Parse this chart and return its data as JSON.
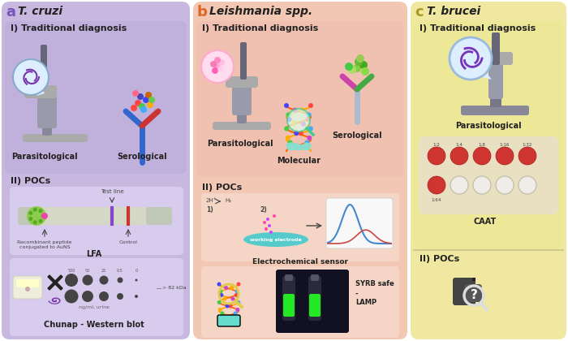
{
  "bg": "#ffffff",
  "panel_a": {
    "label": "a",
    "species": "T. cruzi",
    "label_color": "#7755bb",
    "bg": "#c8b8e0",
    "sec1_bg": "#c0b0dc",
    "sec2_bg": "#c8b8e0",
    "sub_bg": "#d8ccee"
  },
  "panel_b": {
    "label": "b",
    "species": "Leishmania spp.",
    "label_color": "#dd6622",
    "bg": "#f2c8b4",
    "sec1_bg": "#f0c0b0",
    "sec2_bg": "#f2c8b4",
    "sub_bg": "#f5d5c5"
  },
  "panel_c": {
    "label": "c",
    "species": "T. brucei",
    "label_color": "#aa9922",
    "bg": "#f0e8a0",
    "sec1_bg": "#ede898",
    "sec2_bg": "#f0e8a0",
    "sub_bg": "#e8e0c0"
  },
  "dark_text": "#222222",
  "mid_text": "#444444",
  "light_text": "#666666"
}
